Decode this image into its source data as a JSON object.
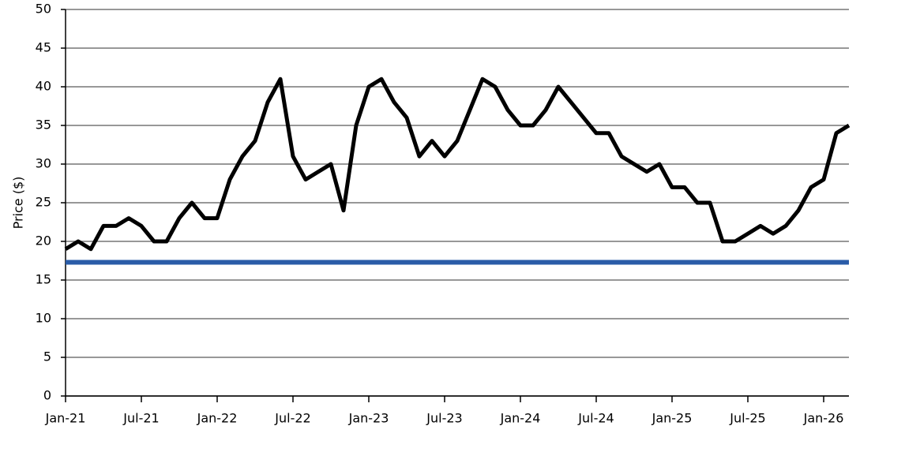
{
  "chart_data": {
    "type": "line",
    "y_label": "Price ($)",
    "x": [
      "2021-01",
      "2021-02",
      "2021-03",
      "2021-04",
      "2021-05",
      "2021-06",
      "2021-07",
      "2021-08",
      "2021-09",
      "2021-10",
      "2021-11",
      "2021-12",
      "2022-01",
      "2022-02",
      "2022-03",
      "2022-04",
      "2022-05",
      "2022-06",
      "2022-07",
      "2022-08",
      "2022-09",
      "2022-10",
      "2022-11",
      "2022-12",
      "2023-01",
      "2023-02",
      "2023-03",
      "2023-04",
      "2023-05",
      "2023-06",
      "2023-07",
      "2023-08",
      "2023-09",
      "2023-10",
      "2023-11",
      "2023-12",
      "2024-01",
      "2024-02",
      "2024-03",
      "2024-04",
      "2024-05",
      "2024-06",
      "2024-07",
      "2024-08",
      "2024-09",
      "2024-10",
      "2024-11",
      "2024-12",
      "2025-01",
      "2025-02",
      "2025-03",
      "2025-04",
      "2025-05",
      "2025-06",
      "2025-07",
      "2025-08",
      "2025-09",
      "2025-10",
      "2025-11",
      "2025-12",
      "2026-01",
      "2026-02",
      "2026-03"
    ],
    "series": [
      {
        "color": "#000000",
        "values": [
          19,
          20,
          19,
          22,
          22,
          23,
          22,
          20,
          20,
          23,
          25,
          23,
          23,
          28,
          31,
          33,
          38,
          41,
          31,
          28,
          29,
          30,
          24,
          35,
          40,
          41,
          38,
          36,
          31,
          33,
          31,
          33,
          37,
          41,
          40,
          37,
          35,
          35,
          37,
          40,
          38,
          36,
          34,
          34,
          31,
          30,
          29,
          30,
          27,
          27,
          25,
          25,
          20,
          20,
          21,
          22,
          21,
          22,
          24,
          27,
          28,
          34,
          35
        ]
      }
    ],
    "reference_line": {
      "value": 17.3,
      "color": "#2a5ca8"
    },
    "xlim": [
      "2021-01",
      "2026-03"
    ],
    "xticks": [
      {
        "value": "2021-01",
        "label": "Jan-21"
      },
      {
        "value": "2021-07",
        "label": "Jul-21"
      },
      {
        "value": "2022-01",
        "label": "Jan-22"
      },
      {
        "value": "2022-07",
        "label": "Jul-22"
      },
      {
        "value": "2023-01",
        "label": "Jan-23"
      },
      {
        "value": "2023-07",
        "label": "Jul-23"
      },
      {
        "value": "2024-01",
        "label": "Jan-24"
      },
      {
        "value": "2024-07",
        "label": "Jul-24"
      },
      {
        "value": "2025-01",
        "label": "Jan-25"
      },
      {
        "value": "2025-07",
        "label": "Jul-25"
      },
      {
        "value": "2026-01",
        "label": "Jan-26"
      }
    ],
    "ylim": [
      0,
      50
    ],
    "yticks": [
      0,
      5,
      10,
      15,
      20,
      25,
      30,
      35,
      40,
      45,
      50
    ],
    "grid": true
  }
}
